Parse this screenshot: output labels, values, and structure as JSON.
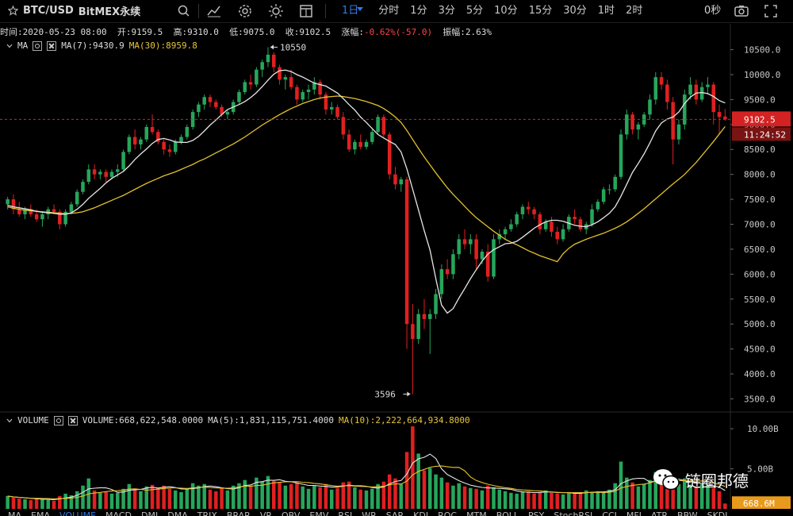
{
  "toolbar": {
    "symbol": "BTC/USD",
    "exchange": "BitMEX永续",
    "timeframes": [
      {
        "label": "1日",
        "active": true
      },
      {
        "label": "分时"
      },
      {
        "label": "1分"
      },
      {
        "label": "3分"
      },
      {
        "label": "5分"
      },
      {
        "label": "10分"
      },
      {
        "label": "15分"
      },
      {
        "label": "30分"
      },
      {
        "label": "1时"
      },
      {
        "label": "2时"
      }
    ],
    "countdown": "0秒",
    "icons": [
      "star-icon",
      "search-icon",
      "indicator-icon",
      "gear-icon",
      "theme-icon",
      "layout-icon",
      "camera-icon",
      "fullscreen-icon"
    ]
  },
  "info_bar": {
    "time_label": "时间:",
    "time": "2020-05-23 08:00",
    "open_label": "开:",
    "open": "9159.5",
    "high_label": "高:",
    "high": "9310.0",
    "low_label": "低:",
    "low": "9075.0",
    "close_label": "收:",
    "close": "9102.5",
    "change_label": "涨幅:",
    "change": "-0.62%(-57.0)",
    "amplitude_label": "振幅:",
    "amplitude": "2.63%"
  },
  "ma_legend": {
    "name": "MA",
    "ma7": "MA(7):9430.9",
    "ma30": "MA(30):8959.8"
  },
  "volume_legend": {
    "name": "VOLUME",
    "volume": "VOLUME:668,622,548.0000",
    "ma5": "MA(5):1,831,115,751.4000",
    "ma10": "MA(10):2,222,664,934.8000"
  },
  "price_axis": {
    "ticks": [
      "10500.0",
      "10000.0",
      "9500.0",
      "9000.0",
      "8500.0",
      "8000.0",
      "7500.0",
      "7000.0",
      "6500.0",
      "6000.0",
      "5500.0",
      "5000.0",
      "4500.0",
      "4000.0",
      "3500.0"
    ],
    "current_price": "9102.5",
    "countdown": "11:24:52"
  },
  "volume_axis": {
    "ticks": [
      "10.00B",
      "5.00B"
    ],
    "current_volume": "668.6M"
  },
  "colors": {
    "up": "#26a65b",
    "down": "#e02020",
    "ma7": "#e6e6e6",
    "ma30": "#e3c12c",
    "accent": "#2f7ce3",
    "price_tag": "#d42222",
    "vol_tag": "#e89a1c"
  },
  "chart_data": {
    "type": "candlestick",
    "y_unit": "USD",
    "ylim": [
      3300,
      10700
    ],
    "high_annotation": "10550",
    "low_annotation": "3596",
    "candles": [
      [
        7400,
        7550,
        7300,
        7500
      ],
      [
        7500,
        7600,
        7200,
        7300
      ],
      [
        7300,
        7450,
        7150,
        7200
      ],
      [
        7200,
        7350,
        7100,
        7300
      ],
      [
        7300,
        7400,
        7150,
        7200
      ],
      [
        7200,
        7300,
        7050,
        7100
      ],
      [
        7100,
        7250,
        6950,
        7200
      ],
      [
        7200,
        7350,
        7100,
        7300
      ],
      [
        7300,
        7400,
        7200,
        7250
      ],
      [
        7250,
        7300,
        6900,
        7000
      ],
      [
        7000,
        7300,
        6950,
        7250
      ],
      [
        7250,
        7450,
        7200,
        7400
      ],
      [
        7400,
        7700,
        7350,
        7650
      ],
      [
        7650,
        7900,
        7600,
        7850
      ],
      [
        7850,
        8200,
        7800,
        8100
      ],
      [
        8100,
        8200,
        7900,
        8000
      ],
      [
        8000,
        8100,
        7900,
        8050
      ],
      [
        8050,
        8100,
        7850,
        7950
      ],
      [
        7950,
        8100,
        7900,
        8050
      ],
      [
        8050,
        8200,
        7950,
        8100
      ],
      [
        8100,
        8500,
        8050,
        8450
      ],
      [
        8450,
        8800,
        8400,
        8750
      ],
      [
        8750,
        8900,
        8500,
        8600
      ],
      [
        8600,
        8750,
        8500,
        8700
      ],
      [
        8700,
        9000,
        8650,
        8950
      ],
      [
        8950,
        9200,
        8800,
        8850
      ],
      [
        8850,
        8900,
        8600,
        8650
      ],
      [
        8650,
        8700,
        8400,
        8500
      ],
      [
        8500,
        8600,
        8350,
        8450
      ],
      [
        8450,
        8700,
        8400,
        8650
      ],
      [
        8650,
        8800,
        8600,
        8750
      ],
      [
        8750,
        9000,
        8700,
        8950
      ],
      [
        8950,
        9300,
        8900,
        9250
      ],
      [
        9250,
        9450,
        9150,
        9400
      ],
      [
        9400,
        9600,
        9300,
        9550
      ],
      [
        9550,
        9600,
        9350,
        9450
      ],
      [
        9450,
        9500,
        9300,
        9350
      ],
      [
        9350,
        9400,
        9150,
        9200
      ],
      [
        9200,
        9300,
        9100,
        9250
      ],
      [
        9250,
        9500,
        9200,
        9450
      ],
      [
        9450,
        9700,
        9400,
        9650
      ],
      [
        9650,
        9900,
        9600,
        9850
      ],
      [
        9850,
        10000,
        9700,
        9800
      ],
      [
        9800,
        10150,
        9750,
        10100
      ],
      [
        10100,
        10300,
        9950,
        10250
      ],
      [
        10250,
        10550,
        10150,
        10400
      ],
      [
        10400,
        10450,
        10050,
        10150
      ],
      [
        10150,
        10200,
        9800,
        9900
      ],
      [
        9900,
        10000,
        9700,
        9950
      ],
      [
        9950,
        10100,
        9700,
        9750
      ],
      [
        9750,
        9800,
        9400,
        9500
      ],
      [
        9500,
        9700,
        9450,
        9650
      ],
      [
        9650,
        9800,
        9500,
        9700
      ],
      [
        9700,
        9950,
        9600,
        9850
      ],
      [
        9850,
        9900,
        9500,
        9600
      ],
      [
        9600,
        9650,
        9200,
        9300
      ],
      [
        9300,
        9450,
        9200,
        9350
      ],
      [
        9350,
        9400,
        9100,
        9150
      ],
      [
        9150,
        9250,
        8700,
        8800
      ],
      [
        8800,
        8900,
        8450,
        8500
      ],
      [
        8500,
        8700,
        8400,
        8650
      ],
      [
        8650,
        8800,
        8500,
        8550
      ],
      [
        8550,
        8700,
        8500,
        8650
      ],
      [
        8650,
        8900,
        8600,
        8850
      ],
      [
        8850,
        9200,
        8800,
        9150
      ],
      [
        9150,
        9200,
        8750,
        8800
      ],
      [
        8800,
        8850,
        7900,
        8000
      ],
      [
        8000,
        8150,
        7700,
        7800
      ],
      [
        7800,
        7950,
        7650,
        7900
      ],
      [
        7900,
        7950,
        4500,
        5000
      ],
      [
        5000,
        5400,
        3596,
        4700
      ],
      [
        4700,
        5300,
        4600,
        5200
      ],
      [
        5200,
        5500,
        4900,
        5100
      ],
      [
        5100,
        5300,
        4400,
        5200
      ],
      [
        5200,
        5700,
        5100,
        5600
      ],
      [
        5600,
        6200,
        5500,
        6100
      ],
      [
        6100,
        6300,
        5900,
        6000
      ],
      [
        6000,
        6500,
        5900,
        6400
      ],
      [
        6400,
        6800,
        6300,
        6700
      ],
      [
        6700,
        6900,
        6500,
        6600
      ],
      [
        6600,
        6800,
        6400,
        6700
      ],
      [
        6700,
        6800,
        6100,
        6300
      ],
      [
        6300,
        6500,
        6200,
        6450
      ],
      [
        6450,
        6600,
        5850,
        5950
      ],
      [
        5950,
        6800,
        5900,
        6700
      ],
      [
        6700,
        6900,
        6600,
        6800
      ],
      [
        6800,
        6950,
        6700,
        6900
      ],
      [
        6900,
        7100,
        6850,
        7000
      ],
      [
        7000,
        7250,
        6950,
        7200
      ],
      [
        7200,
        7400,
        7100,
        7350
      ],
      [
        7350,
        7450,
        7200,
        7300
      ],
      [
        7300,
        7350,
        7100,
        7200
      ],
      [
        7200,
        7250,
        6800,
        6900
      ],
      [
        6900,
        7100,
        6850,
        7050
      ],
      [
        7050,
        7150,
        6750,
        6850
      ],
      [
        6850,
        6950,
        6600,
        6700
      ],
      [
        6700,
        7000,
        6650,
        6900
      ],
      [
        6900,
        7200,
        6850,
        7150
      ],
      [
        7150,
        7300,
        7000,
        7100
      ],
      [
        7100,
        7150,
        6850,
        6900
      ],
      [
        6900,
        7050,
        6800,
        7000
      ],
      [
        7000,
        7400,
        6950,
        7300
      ],
      [
        7300,
        7500,
        7250,
        7450
      ],
      [
        7450,
        7750,
        7400,
        7700
      ],
      [
        7700,
        7800,
        7600,
        7700
      ],
      [
        7700,
        8000,
        7650,
        7950
      ],
      [
        7950,
        8900,
        7900,
        8800
      ],
      [
        8800,
        9300,
        8700,
        9200
      ],
      [
        9200,
        9250,
        8800,
        8900
      ],
      [
        8900,
        9050,
        8700,
        9000
      ],
      [
        9000,
        9250,
        8950,
        9200
      ],
      [
        9200,
        9600,
        9100,
        9500
      ],
      [
        9500,
        10050,
        9400,
        9950
      ],
      [
        9950,
        10050,
        9700,
        9800
      ],
      [
        9800,
        9900,
        9300,
        9450
      ],
      [
        9450,
        9550,
        8200,
        8700
      ],
      [
        8700,
        9100,
        8600,
        9000
      ],
      [
        9000,
        9700,
        8900,
        9600
      ],
      [
        9600,
        9950,
        9500,
        9800
      ],
      [
        9800,
        9900,
        9400,
        9500
      ],
      [
        9500,
        9850,
        9450,
        9750
      ],
      [
        9750,
        9950,
        9600,
        9800
      ],
      [
        9800,
        9850,
        9000,
        9250
      ],
      [
        9250,
        9400,
        8800,
        9150
      ],
      [
        9159.5,
        9310,
        9075,
        9102.5
      ]
    ],
    "ma7": [
      7380,
      7350,
      7330,
      7310,
      7290,
      7260,
      7240,
      7230,
      7220,
      7200,
      7200,
      7230,
      7300,
      7400,
      7520,
      7620,
      7720,
      7830,
      7920,
      7990,
      8060,
      8170,
      8300,
      8410,
      8510,
      8620,
      8700,
      8720,
      8690,
      8650,
      8640,
      8640,
      8680,
      8760,
      8870,
      8990,
      9090,
      9200,
      9300,
      9350,
      9400,
      9460,
      9540,
      9640,
      9760,
      9890,
      10010,
      10080,
      10090,
      10060,
      10000,
      9950,
      9890,
      9830,
      9800,
      9770,
      9700,
      9630,
      9520,
      9400,
      9290,
      9150,
      9040,
      8920,
      8800,
      8730,
      8660,
      8600,
      8450,
      8110,
      7700,
      7290,
      6870,
      6480,
      5910,
      5380,
      5220,
      5310,
      5520,
      5710,
      5910,
      6090,
      6260,
      6400,
      6490,
      6550,
      6610,
      6620,
      6660,
      6740,
      6830,
      6920,
      6990,
      7050,
      7080,
      7080,
      7060,
      7020,
      6980,
      6960,
      6950,
      6990,
      7050,
      7130,
      7220,
      7350,
      7560,
      7800,
      8040,
      8220,
      8410,
      8630,
      8870,
      9030,
      9110,
      9150,
      9250,
      9420,
      9550,
      9630,
      9640,
      9620,
      9560,
      9480,
      9430.9
    ],
    "ma30": [
      7350,
      7320,
      7300,
      7280,
      7270,
      7260,
      7250,
      7240,
      7230,
      7220,
      7210,
      7220,
      7230,
      7250,
      7290,
      7330,
      7380,
      7430,
      7480,
      7530,
      7580,
      7640,
      7700,
      7760,
      7820,
      7870,
      7920,
      7970,
      8010,
      8050,
      8100,
      8150,
      8200,
      8260,
      8310,
      8370,
      8430,
      8490,
      8550,
      8610,
      8680,
      8750,
      8830,
      8910,
      8990,
      9060,
      9130,
      9200,
      9260,
      9320,
      9370,
      9420,
      9460,
      9500,
      9530,
      9550,
      9560,
      9570,
      9560,
      9540,
      9520,
      9490,
      9460,
      9420,
      9380,
      9320,
      9240,
      9150,
      9040,
      8880,
      8700,
      8520,
      8350,
      8190,
      8030,
      7880,
      7730,
      7600,
      7480,
      7360,
      7240,
      7130,
      7040,
      6950,
      6860,
      6780,
      6700,
      6640,
      6590,
      6530,
      6470,
      6420,
      6370,
      6330,
      6290,
      6250,
      6410,
      6520,
      6600,
      6650,
      6700,
      6740,
      6780,
      6820,
      6870,
      6920,
      6980,
      7050,
      7130,
      7220,
      7310,
      7410,
      7510,
      7610,
      7710,
      7810,
      7900,
      8000,
      8120,
      8240,
      8380,
      8520,
      8660,
      8810,
      8959.8
    ],
    "volume": [
      1.6,
      1.4,
      1.3,
      1.2,
      1.1,
      1.3,
      1.2,
      1.1,
      1.0,
      1.6,
      1.9,
      1.7,
      2.2,
      2.9,
      3.8,
      2.3,
      2.0,
      2.1,
      1.9,
      2.0,
      2.5,
      3.1,
      2.4,
      2.2,
      2.8,
      3.0,
      2.6,
      2.9,
      2.5,
      2.3,
      2.1,
      2.6,
      3.2,
      2.9,
      3.1,
      2.4,
      2.2,
      2.6,
      2.3,
      2.9,
      3.2,
      3.6,
      2.9,
      3.9,
      3.4,
      4.1,
      3.5,
      3.3,
      2.9,
      3.1,
      3.3,
      2.8,
      2.5,
      2.9,
      2.7,
      3.1,
      2.4,
      2.6,
      3.3,
      3.4,
      2.7,
      2.4,
      2.3,
      2.5,
      3.1,
      3.4,
      4.3,
      3.8,
      3.1,
      7.1,
      10.3,
      6.9,
      4.8,
      5.1,
      4.3,
      3.9,
      3.3,
      2.9,
      3.2,
      2.8,
      2.6,
      2.5,
      2.3,
      2.9,
      2.7,
      2.4,
      2.2,
      2.0,
      1.9,
      2.1,
      2.2,
      1.9,
      2.1,
      2.3,
      2.0,
      1.9,
      1.8,
      2.1,
      1.9,
      2.0,
      2.3,
      2.1,
      2.2,
      2.0,
      2.4,
      3.2,
      5.9,
      3.9,
      3.3,
      2.8,
      3.1,
      3.6,
      4.6,
      3.7,
      3.2,
      3.9,
      3.1,
      3.8,
      3.0,
      2.8,
      3.1,
      2.9,
      2.6,
      2.2,
      0.67
    ]
  },
  "indicator_tabs": [
    "MA",
    "EMA",
    "VOLUME",
    "MACD",
    "DMI",
    "DMA",
    "TRIX",
    "BRAR",
    "VR",
    "OBV",
    "EMV",
    "RSI",
    "WR",
    "SAR",
    "KDJ",
    "ROC",
    "MTM",
    "BOLL",
    "PSY",
    "StochRSI",
    "CCI",
    "MFI",
    "ATR",
    "BBW",
    "SKDJ"
  ],
  "watermark": {
    "text": "链圈邦德"
  }
}
